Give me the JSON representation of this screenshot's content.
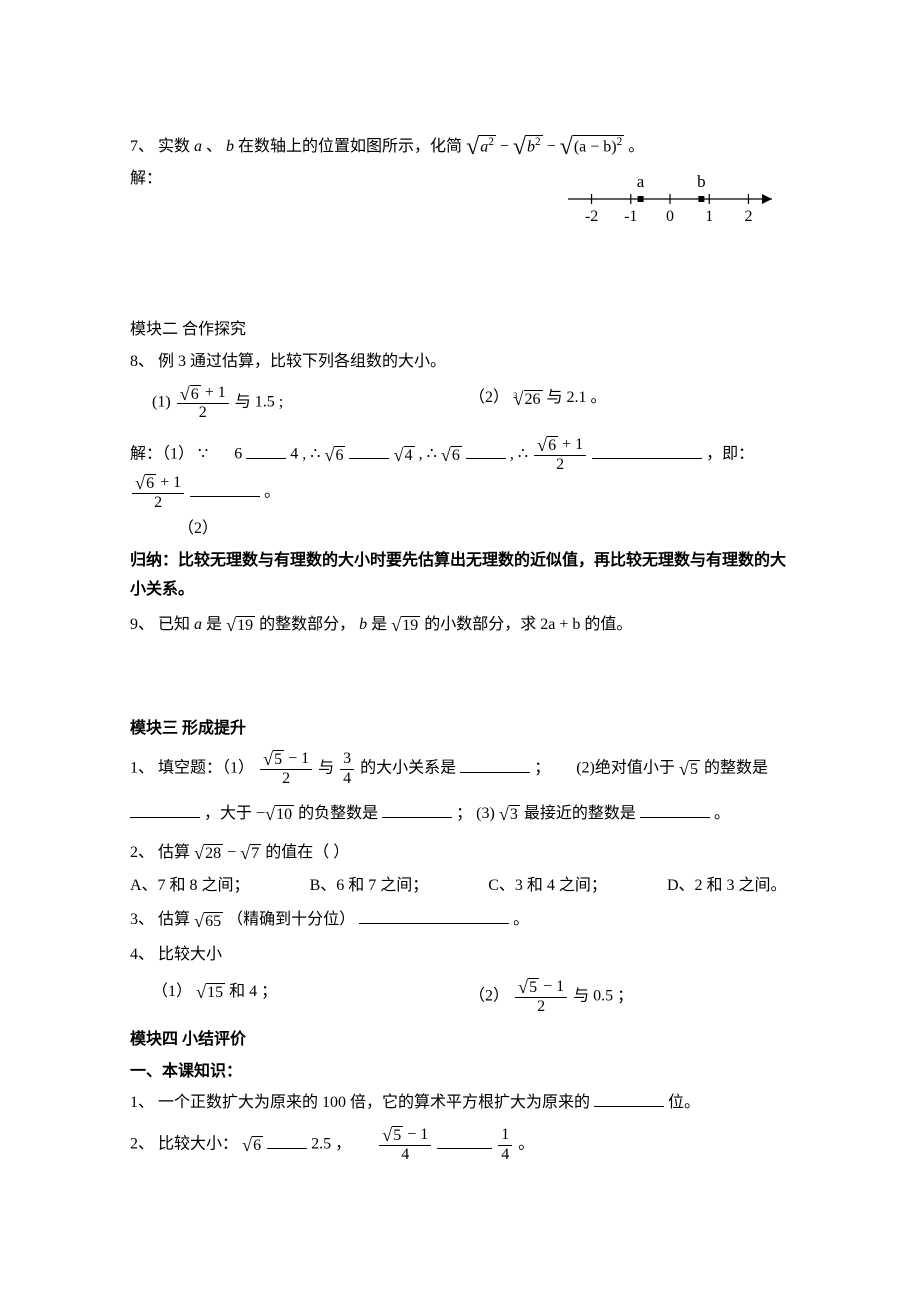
{
  "q7": {
    "no": "7、",
    "pre": "实数",
    "a": "a",
    "dun1": "、",
    "b": "b",
    "mid1": "在数轴上的位置如图所示，化简",
    "expr_a2": "a",
    "expr_sq": "2",
    "minus": " − ",
    "expr_b2": "b",
    "expr_ab1": "(a − b)",
    "period": " 。",
    "sol_label": "解：",
    "numberline": {
      "x_start": -2.6,
      "x_end": 2.6,
      "ticks": [
        -2,
        -1,
        0,
        1,
        2
      ],
      "tick_labels": [
        "-2",
        "-1",
        "0",
        "1",
        "2"
      ],
      "a_label": "a",
      "a_x": -0.75,
      "b_label": "b",
      "b_x": 0.8,
      "axis_color": "#000000"
    }
  },
  "mod2": {
    "title": "模块二  合作探究",
    "q8_no": "8、",
    "q8_pre": "例 3 通过估算，比较下列各组数的大小。",
    "p1_label": "(1)",
    "p1_yu": "与",
    "p1_rhs": "1.5",
    "p1_semi": ";",
    "p2_label": "（2）",
    "p2_cuberad": "26",
    "p2_yu": "与",
    "p2_rhs": "2.1",
    "p2_period": "。",
    "sol_label": "解：（1）",
    "because": "∵",
    "therefore1": "∴",
    "therefore2": "∴",
    "therefore3": "∴",
    "six": "6",
    "four": "4",
    "four_sqrt": "4",
    "six_sqrt": "6",
    "ji": "，即：",
    "comma": "，",
    "period": "。",
    "sol2_label": "（2）",
    "summary": "归纳：比较无理数与有理数的大小时要先估算出无理数的近似值，再比较无理数与有理数的大小关系。",
    "q9_no": "9、",
    "q9_a": "已知",
    "q9_a_var": "a",
    "q9_b": " 是",
    "q9_root": "19",
    "q9_c": " 的整数部分，",
    "q9_b_var": "b",
    "q9_d": " 是",
    "q9_e": " 的小数部分，求 ",
    "q9_expr": "2a + b",
    "q9_f": " 的值。"
  },
  "mod3": {
    "title": "模块三  形成提升",
    "q1_no": "1、",
    "q1_pre": "填空题：（1）",
    "q1_yu": "与",
    "q1_frac2_num": "3",
    "q1_frac2_den": "4",
    "q1_mid": "的大小关系是",
    "q1_semi": "；",
    "q1_p2_pre": "(2)绝对值小于",
    "q1_p2_root": "5",
    "q1_p2_tail": "的整数是",
    "q1_line2a": "，大于",
    "q1_line2b": "的负整数是",
    "q1_line2_root": "10",
    "q1_line2_semi": "；",
    "q1_p3_pre": "(3)  ",
    "q1_p3_root": "3",
    "q1_p3_tail": " 最接近的整数是",
    "q1_period": "。",
    "q2_no": "2、",
    "q2_pre": "估算",
    "q2_root1": "28",
    "q2_root2": "7",
    "q2_tail": "的值在（    ）",
    "q2_opts": {
      "a": "A、7 和 8 之间；",
      "b": "B、6 和 7 之间；",
      "c": "C、3 和 4 之间；",
      "d": "D、2 和 3 之间。"
    },
    "q3_no": "3、",
    "q3_pre": "估算",
    "q3_root": "65",
    "q3_tail": "（精确到十分位）",
    "q3_period": "。",
    "q4_no": "4、",
    "q4_pre": "比较大小",
    "q4p1_label": "（1）",
    "q4p1_root": "15",
    "q4p1_and": " 和 ",
    "q4p1_rhs": "4",
    "q4p1_semi": "；",
    "q4p2_label": "（2）",
    "q4p2_yu": "与",
    "q4p2_rhs": "0.5",
    "q4p2_semi": "；"
  },
  "mod4": {
    "title": "模块四  小结评价",
    "sub": "一、本课知识：",
    "q1_no": "1、",
    "q1_text_a": "一个正数扩大为原来的 100 倍，它的算术平方根扩大为原来的",
    "q1_text_b": "位。",
    "q2_no": "2、",
    "q2_pre": "比较大小：",
    "q2_root6": "6",
    "q2_rhs1": "2.5",
    "q2_comma": "，",
    "q2_frac1_num_root": "5",
    "q2_frac1_num_tail": " − 1",
    "q2_frac1_den": "4",
    "q2_frac2_num": "1",
    "q2_frac2_den": "4",
    "q2_period": "。"
  },
  "shared": {
    "sqrt6p1": {
      "num_root": "6",
      "num_tail": " + 1",
      "den": "2"
    },
    "sqrt5m1_over2": {
      "num_root": "5",
      "num_tail": " − 1",
      "den": "2"
    },
    "minus": " − "
  }
}
